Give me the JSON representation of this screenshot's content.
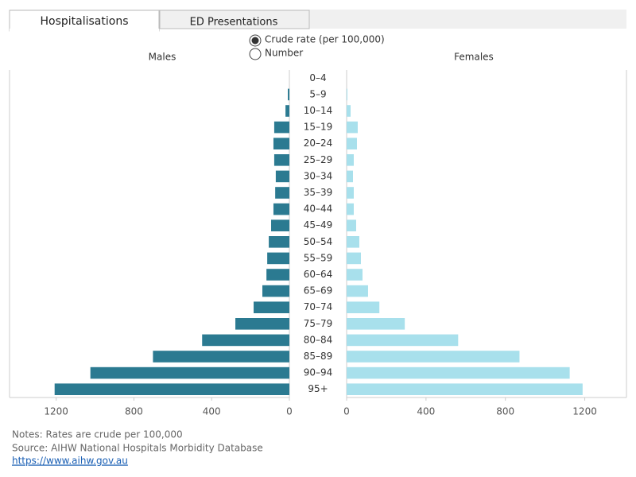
{
  "tabs": [
    "Hospitalisations",
    "ED Presentations"
  ],
  "options": [
    "Crude rate (per 100,000)",
    "Number"
  ],
  "notes": [
    "Notes: Rates are crude per 100,000",
    "Source: AIHW National Hospitals Morbidity Database",
    "https://www.aihw.gov.au"
  ],
  "chart_data": {
    "type": "bar",
    "categories": [
      "0–4",
      "5–9",
      "10–14",
      "15–19",
      "20–24",
      "25–29",
      "30–34",
      "35–39",
      "40–44",
      "45–49",
      "50–54",
      "55–59",
      "60–64",
      "65–69",
      "70–74",
      "75–79",
      "80–84",
      "85–89",
      "90–94",
      "95+"
    ],
    "series": [
      {
        "name": "Males",
        "color": "#2b7a91",
        "values": [
          0,
          8,
          20,
          78,
          82,
          78,
          70,
          73,
          82,
          94,
          106,
          114,
          118,
          139,
          184,
          278,
          449,
          702,
          1024,
          1208
        ],
        "xlim": [
          0,
          1440
        ],
        "xticks": [
          1200,
          800,
          400,
          0
        ]
      },
      {
        "name": "Females",
        "color": "#a8e0ec",
        "values": [
          0,
          4,
          20,
          56,
          52,
          36,
          32,
          36,
          36,
          48,
          64,
          72,
          80,
          108,
          165,
          293,
          562,
          871,
          1124,
          1189
        ],
        "xlim": [
          0,
          1410
        ],
        "xticks": [
          0,
          400,
          800,
          1200
        ]
      }
    ]
  }
}
